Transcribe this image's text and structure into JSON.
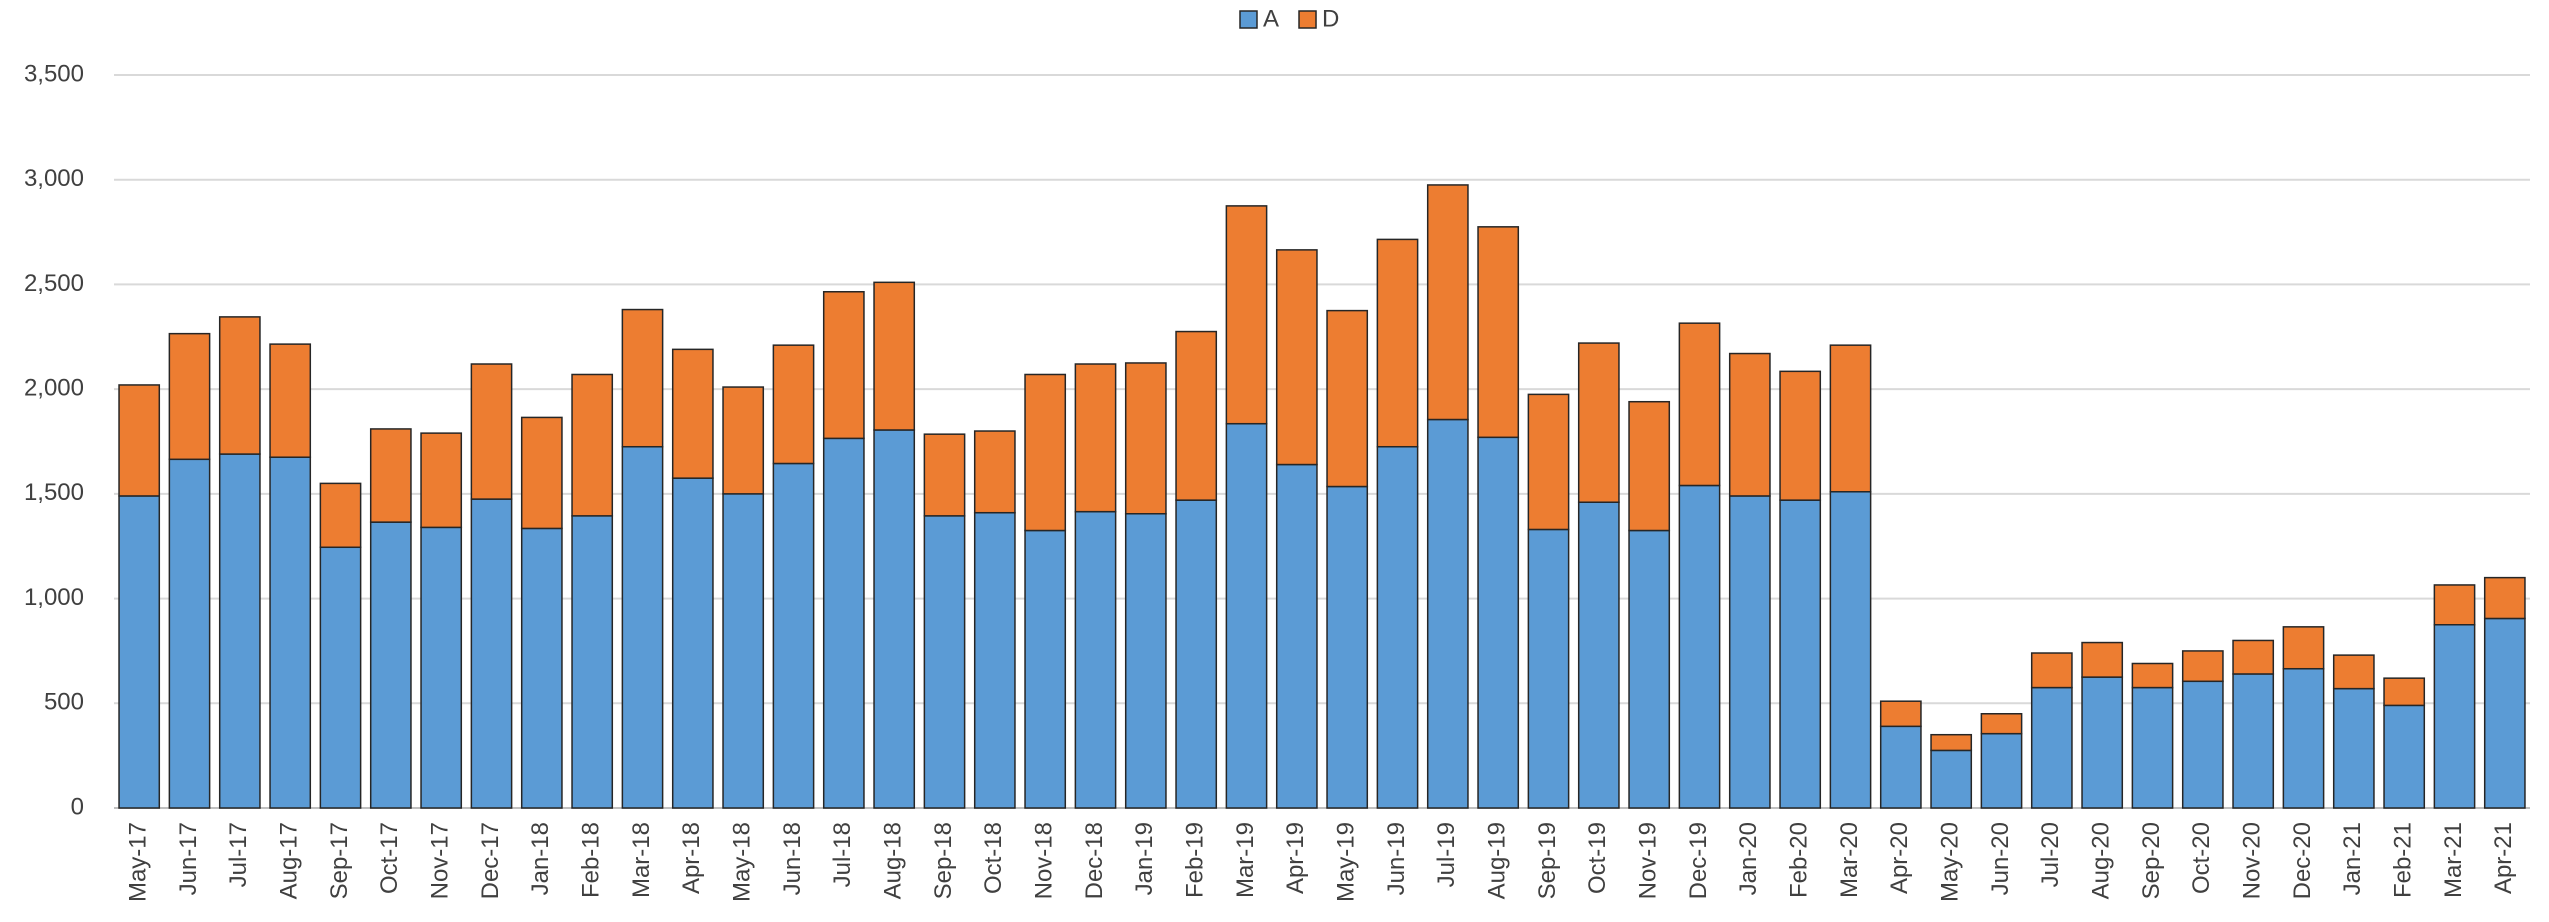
{
  "chart_data": {
    "type": "stacked_bar",
    "categories": [
      "May-17",
      "Jun-17",
      "Jul-17",
      "Aug-17",
      "Sep-17",
      "Oct-17",
      "Nov-17",
      "Dec-17",
      "Jan-18",
      "Feb-18",
      "Mar-18",
      "Apr-18",
      "May-18",
      "Jun-18",
      "Jul-18",
      "Aug-18",
      "Sep-18",
      "Oct-18",
      "Nov-18",
      "Dec-18",
      "Jan-19",
      "Feb-19",
      "Mar-19",
      "Apr-19",
      "May-19",
      "Jun-19",
      "Jul-19",
      "Aug-19",
      "Sep-19",
      "Oct-19",
      "Nov-19",
      "Dec-19",
      "Jan-20",
      "Feb-20",
      "Mar-20",
      "Apr-20",
      "May-20",
      "Jun-20",
      "Jul-20",
      "Aug-20",
      "Sep-20",
      "Oct-20",
      "Nov-20",
      "Dec-20",
      "Jan-21",
      "Feb-21",
      "Mar-21",
      "Apr-21"
    ],
    "series": [
      {
        "name": "A",
        "color": "#5b9bd5",
        "values": [
          1490,
          1665,
          1690,
          1675,
          1245,
          1365,
          1340,
          1475,
          1335,
          1395,
          1725,
          1575,
          1500,
          1645,
          1765,
          1805,
          1395,
          1410,
          1325,
          1415,
          1405,
          1470,
          1835,
          1640,
          1535,
          1725,
          1855,
          1770,
          1330,
          1460,
          1325,
          1540,
          1490,
          1470,
          1510,
          390,
          275,
          355,
          575,
          625,
          575,
          605,
          640,
          665,
          570,
          490,
          875,
          905
        ]
      },
      {
        "name": "D",
        "color": "#ed7d31",
        "values": [
          530,
          600,
          655,
          540,
          305,
          445,
          450,
          645,
          530,
          675,
          655,
          615,
          510,
          565,
          700,
          705,
          390,
          390,
          745,
          705,
          720,
          805,
          1040,
          1025,
          840,
          990,
          1120,
          1005,
          645,
          760,
          615,
          775,
          680,
          615,
          700,
          120,
          75,
          95,
          165,
          165,
          115,
          145,
          160,
          200,
          160,
          130,
          190,
          195
        ]
      }
    ],
    "ylim": [
      0,
      3500
    ],
    "yticks": [
      0,
      500,
      {
        "value": 1000,
        "label": "1,000"
      },
      {
        "value": 1500,
        "label": "1,500"
      },
      {
        "value": 2000,
        "label": "2,000"
      },
      {
        "value": 2500,
        "label": "2,500"
      },
      {
        "value": 3000,
        "label": "3,000"
      },
      {
        "value": 3500,
        "label": "3,500"
      }
    ],
    "grid": true,
    "legend": "top"
  }
}
